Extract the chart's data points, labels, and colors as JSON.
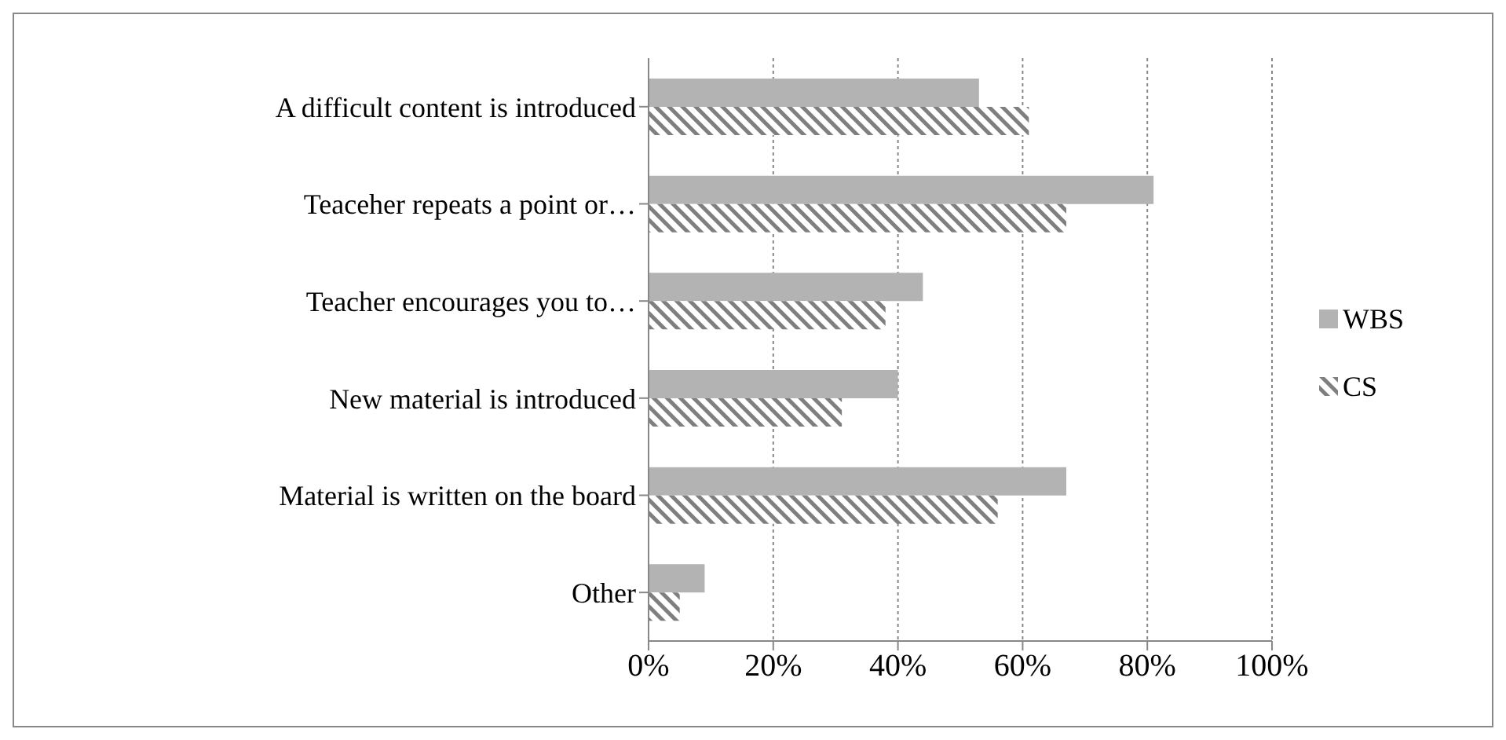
{
  "chart_data": {
    "type": "bar",
    "orientation": "horizontal",
    "categories": [
      "A difficult content is introduced",
      "Teaceher repeats a point or…",
      "Teacher encourages you to…",
      "New material is introduced",
      "Material is written on the board",
      "Other"
    ],
    "series": [
      {
        "name": "WBS",
        "color": "#b3b3b3",
        "values": [
          53,
          81,
          44,
          40,
          67,
          9
        ]
      },
      {
        "name": "CS",
        "color": "#7f7f7f",
        "values": [
          61,
          67,
          38,
          31,
          56,
          5
        ]
      }
    ],
    "xlim": [
      0,
      100
    ],
    "xticks": [
      {
        "value": 0,
        "label": "0%"
      },
      {
        "value": 20,
        "label": "20%"
      },
      {
        "value": 40,
        "label": "40%"
      },
      {
        "value": 60,
        "label": "60%"
      },
      {
        "value": 80,
        "label": "80%"
      },
      {
        "value": 100,
        "label": "100%"
      }
    ],
    "grid": "x",
    "legend": "right"
  }
}
